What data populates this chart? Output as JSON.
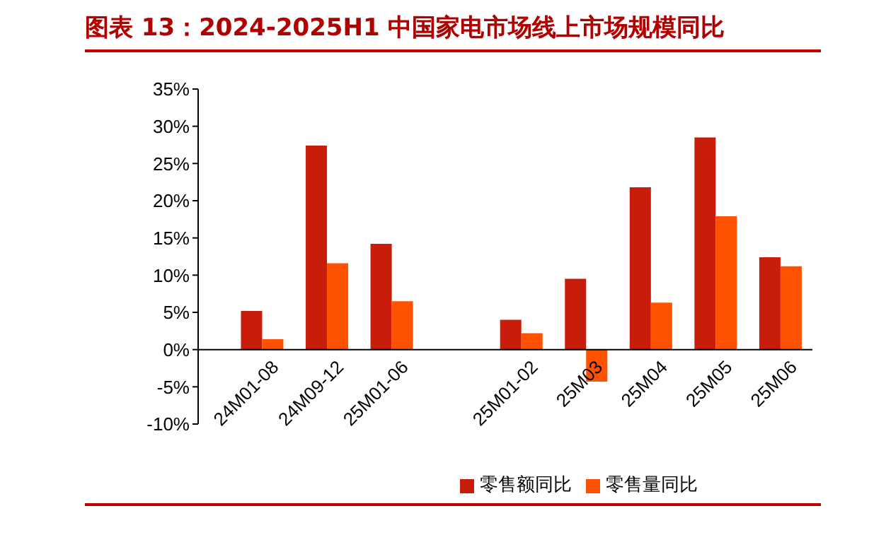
{
  "chart_data": {
    "type": "bar",
    "title": "图表 13：2024-2025H1 中国家电市场线上市场规模同比",
    "categories": [
      "24M01-08",
      "24M09-12",
      "25M01-06",
      null,
      "25M01-02",
      "25M03",
      "25M04",
      "25M05",
      "25M06"
    ],
    "series": [
      {
        "name": "零售额同比",
        "color": "#c71d0a",
        "values": [
          5.2,
          27.4,
          14.2,
          null,
          4.0,
          9.5,
          21.8,
          28.5,
          12.4
        ]
      },
      {
        "name": "零售量同比",
        "color": "#ff5200",
        "values": [
          1.4,
          11.6,
          6.5,
          null,
          2.2,
          -4.3,
          6.3,
          17.9,
          11.2
        ]
      }
    ],
    "ylim": [
      -10,
      35
    ],
    "yticks": [
      {
        "value": -10,
        "label": "-10%"
      },
      {
        "value": -5,
        "label": "-5%"
      },
      {
        "value": 0,
        "label": "0%"
      },
      {
        "value": 5,
        "label": "5%"
      },
      {
        "value": 10,
        "label": "10%"
      },
      {
        "value": 15,
        "label": "15%"
      },
      {
        "value": 20,
        "label": "20%"
      },
      {
        "value": 25,
        "label": "25%"
      },
      {
        "value": 30,
        "label": "30%"
      },
      {
        "value": 35,
        "label": "35%"
      }
    ],
    "legend": "bottom"
  }
}
